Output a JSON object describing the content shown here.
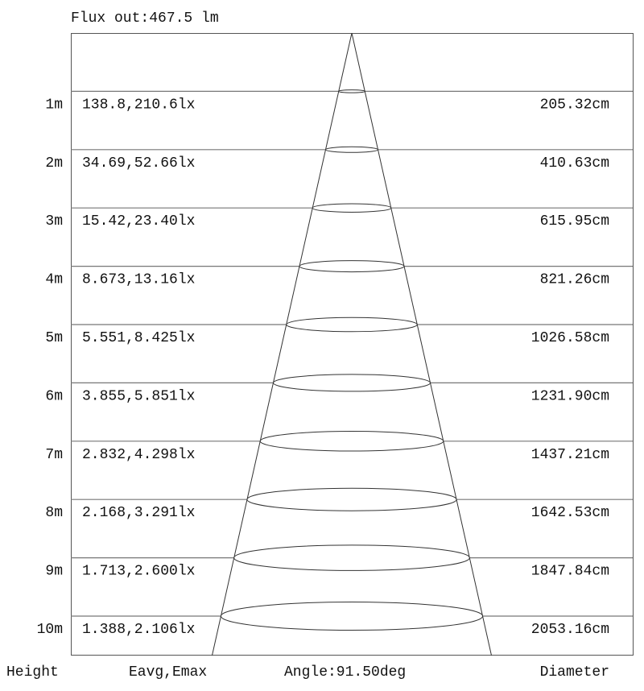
{
  "header": {
    "flux_label": "Flux out:467.5 lm"
  },
  "footer": {
    "height_label": "Height",
    "illuminance_label": "Eavg,Emax",
    "angle_label": "Angle:91.50deg",
    "diameter_label": "Diameter"
  },
  "beam_angle_deg": 91.5,
  "rows": [
    {
      "height": "1m",
      "illuminance": "138.8,210.6lx",
      "diameter": "205.32cm"
    },
    {
      "height": "2m",
      "illuminance": "34.69,52.66lx",
      "diameter": "410.63cm"
    },
    {
      "height": "3m",
      "illuminance": "15.42,23.40lx",
      "diameter": "615.95cm"
    },
    {
      "height": "4m",
      "illuminance": "8.673,13.16lx",
      "diameter": "821.26cm"
    },
    {
      "height": "5m",
      "illuminance": "5.551,8.425lx",
      "diameter": "1026.58cm"
    },
    {
      "height": "6m",
      "illuminance": "3.855,5.851lx",
      "diameter": "1231.90cm"
    },
    {
      "height": "7m",
      "illuminance": "2.832,4.298lx",
      "diameter": "1437.21cm"
    },
    {
      "height": "8m",
      "illuminance": "2.168,3.291lx",
      "diameter": "1642.53cm"
    },
    {
      "height": "9m",
      "illuminance": "1.713,2.600lx",
      "diameter": "1847.84cm"
    },
    {
      "height": "10m",
      "illuminance": "1.388,2.106lx",
      "diameter": "2053.16cm"
    }
  ]
}
